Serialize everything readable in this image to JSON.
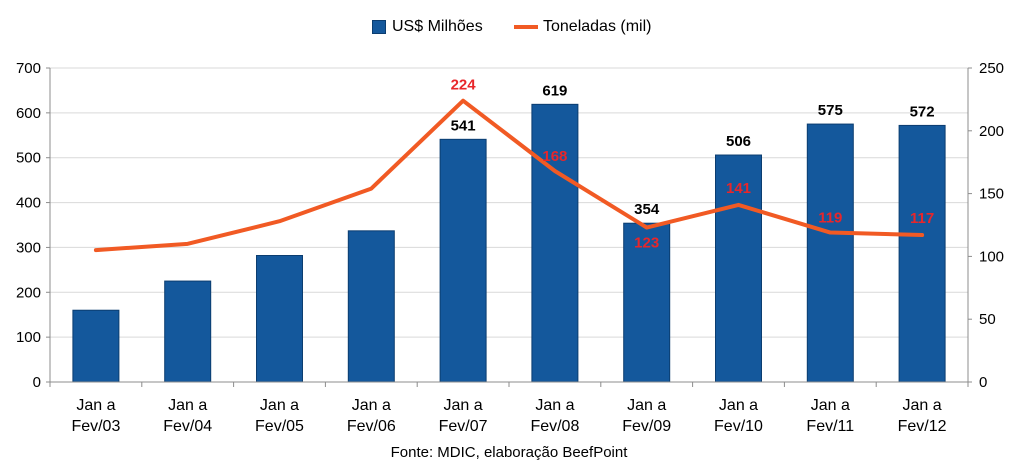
{
  "chart_data": {
    "type": "bar",
    "categories": [
      "Jan a Fev/03",
      "Jan a Fev/04",
      "Jan a Fev/05",
      "Jan a Fev/06",
      "Jan a Fev/07",
      "Jan a Fev/08",
      "Jan a Fev/09",
      "Jan a Fev/10",
      "Jan a Fev/11",
      "Jan a Fev/12"
    ],
    "series": [
      {
        "name": "US$ Milhões",
        "type": "bar",
        "axis": "left",
        "color": "#14589c",
        "label_color": "#000000",
        "values": [
          160,
          225,
          282,
          337,
          541,
          619,
          354,
          506,
          575,
          572
        ],
        "data_labels": [
          null,
          null,
          null,
          null,
          "541",
          "619",
          "354",
          "506",
          "575",
          "572"
        ]
      },
      {
        "name": "Toneladas (mil)",
        "type": "line",
        "axis": "right",
        "color": "#f15a24",
        "label_color": "#e8262a",
        "values": [
          105,
          110,
          128,
          154,
          224,
          168,
          123,
          141,
          119,
          117
        ],
        "data_labels": [
          null,
          null,
          null,
          null,
          "224",
          "168",
          "123",
          "141",
          "119",
          "117"
        ]
      }
    ],
    "y_left": {
      "min": 0,
      "max": 700,
      "ticks": [
        "0",
        "100",
        "200",
        "300",
        "400",
        "500",
        "600",
        "700"
      ]
    },
    "y_right": {
      "min": 0,
      "max": 250,
      "ticks": [
        "0",
        "50",
        "100",
        "150",
        "200",
        "250"
      ]
    },
    "grid": true,
    "legend_position": "top"
  },
  "source": "Fonte: MDIC, elaboração BeefPoint"
}
